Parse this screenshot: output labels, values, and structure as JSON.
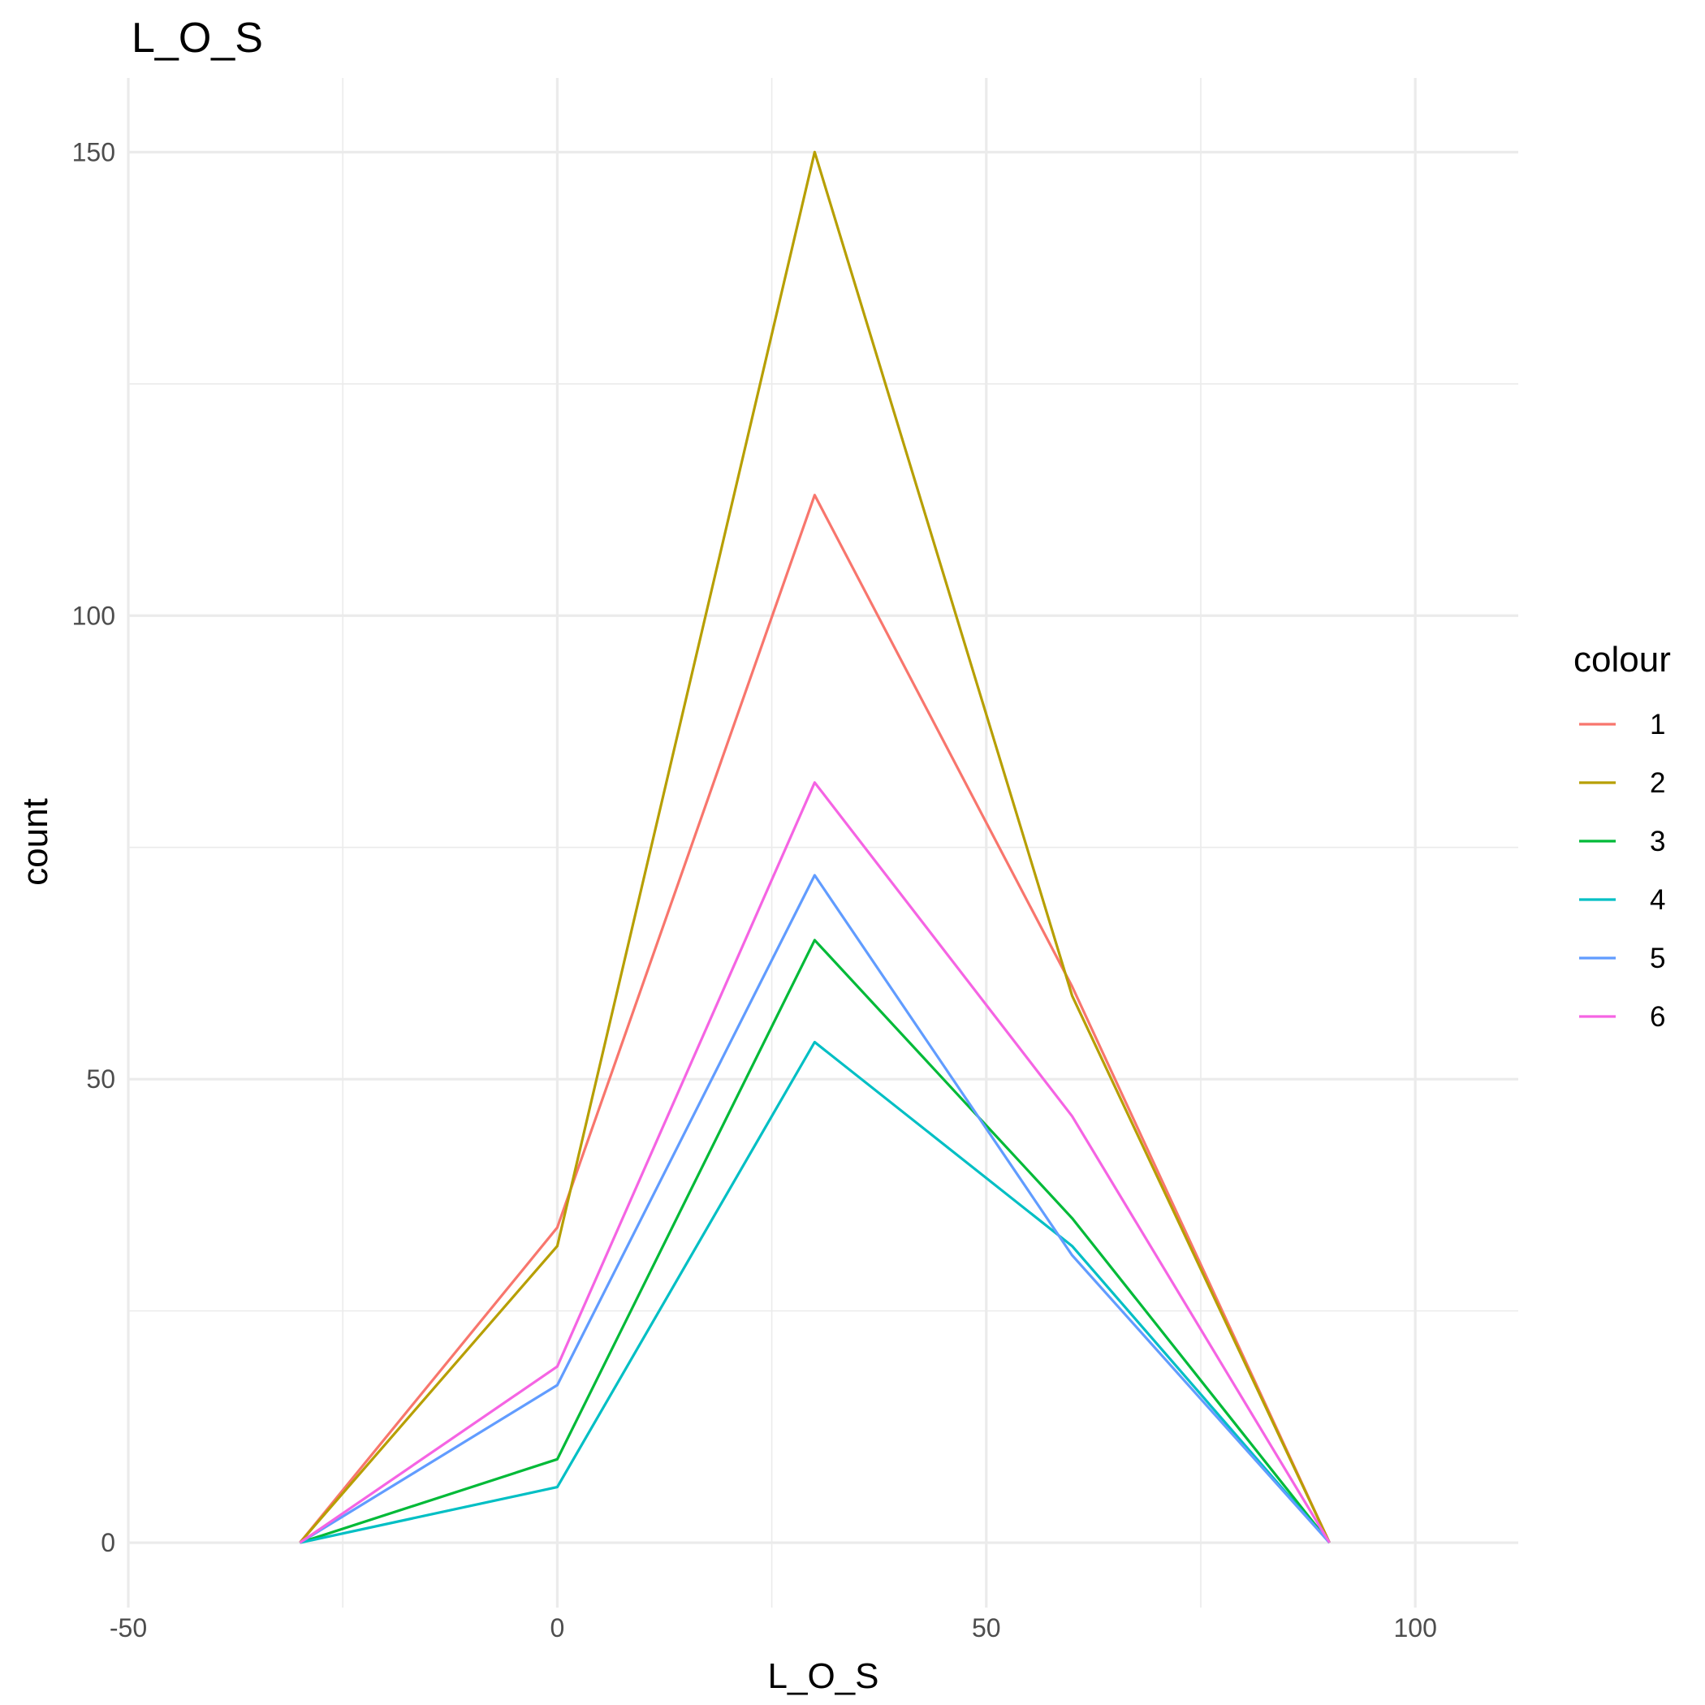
{
  "chart_data": {
    "type": "line",
    "title": "L_O_S",
    "xlabel": "L_O_S",
    "ylabel": "count",
    "xlim": [
      -50,
      112
    ],
    "ylim": [
      -7,
      158
    ],
    "x_ticks": [
      -50,
      0,
      50,
      100
    ],
    "x_tick_labels": [
      "-50",
      "0",
      "50",
      "100"
    ],
    "x_minor_ticks": [
      -25,
      25,
      75
    ],
    "y_ticks": [
      0,
      50,
      100,
      150
    ],
    "y_tick_labels": [
      "0",
      "50",
      "100",
      "150"
    ],
    "y_minor_ticks": [
      25,
      75,
      125
    ],
    "grid": true,
    "legend": {
      "title": "colour",
      "position": "right"
    },
    "x": [
      -30,
      0,
      30,
      60,
      90
    ],
    "series": [
      {
        "name": "1",
        "color": "#F8766D",
        "values": [
          0,
          34,
          113,
          60,
          0
        ]
      },
      {
        "name": "2",
        "color": "#B79F00",
        "values": [
          0,
          32,
          150,
          59,
          0
        ]
      },
      {
        "name": "3",
        "color": "#00BA38",
        "values": [
          0,
          9,
          65,
          35,
          0
        ]
      },
      {
        "name": "4",
        "color": "#00BFC4",
        "values": [
          0,
          6,
          54,
          32,
          0
        ]
      },
      {
        "name": "5",
        "color": "#619CFF",
        "values": [
          0,
          17,
          72,
          31,
          0
        ]
      },
      {
        "name": "6",
        "color": "#F564E3",
        "values": [
          0,
          19,
          82,
          46,
          0
        ]
      }
    ]
  }
}
